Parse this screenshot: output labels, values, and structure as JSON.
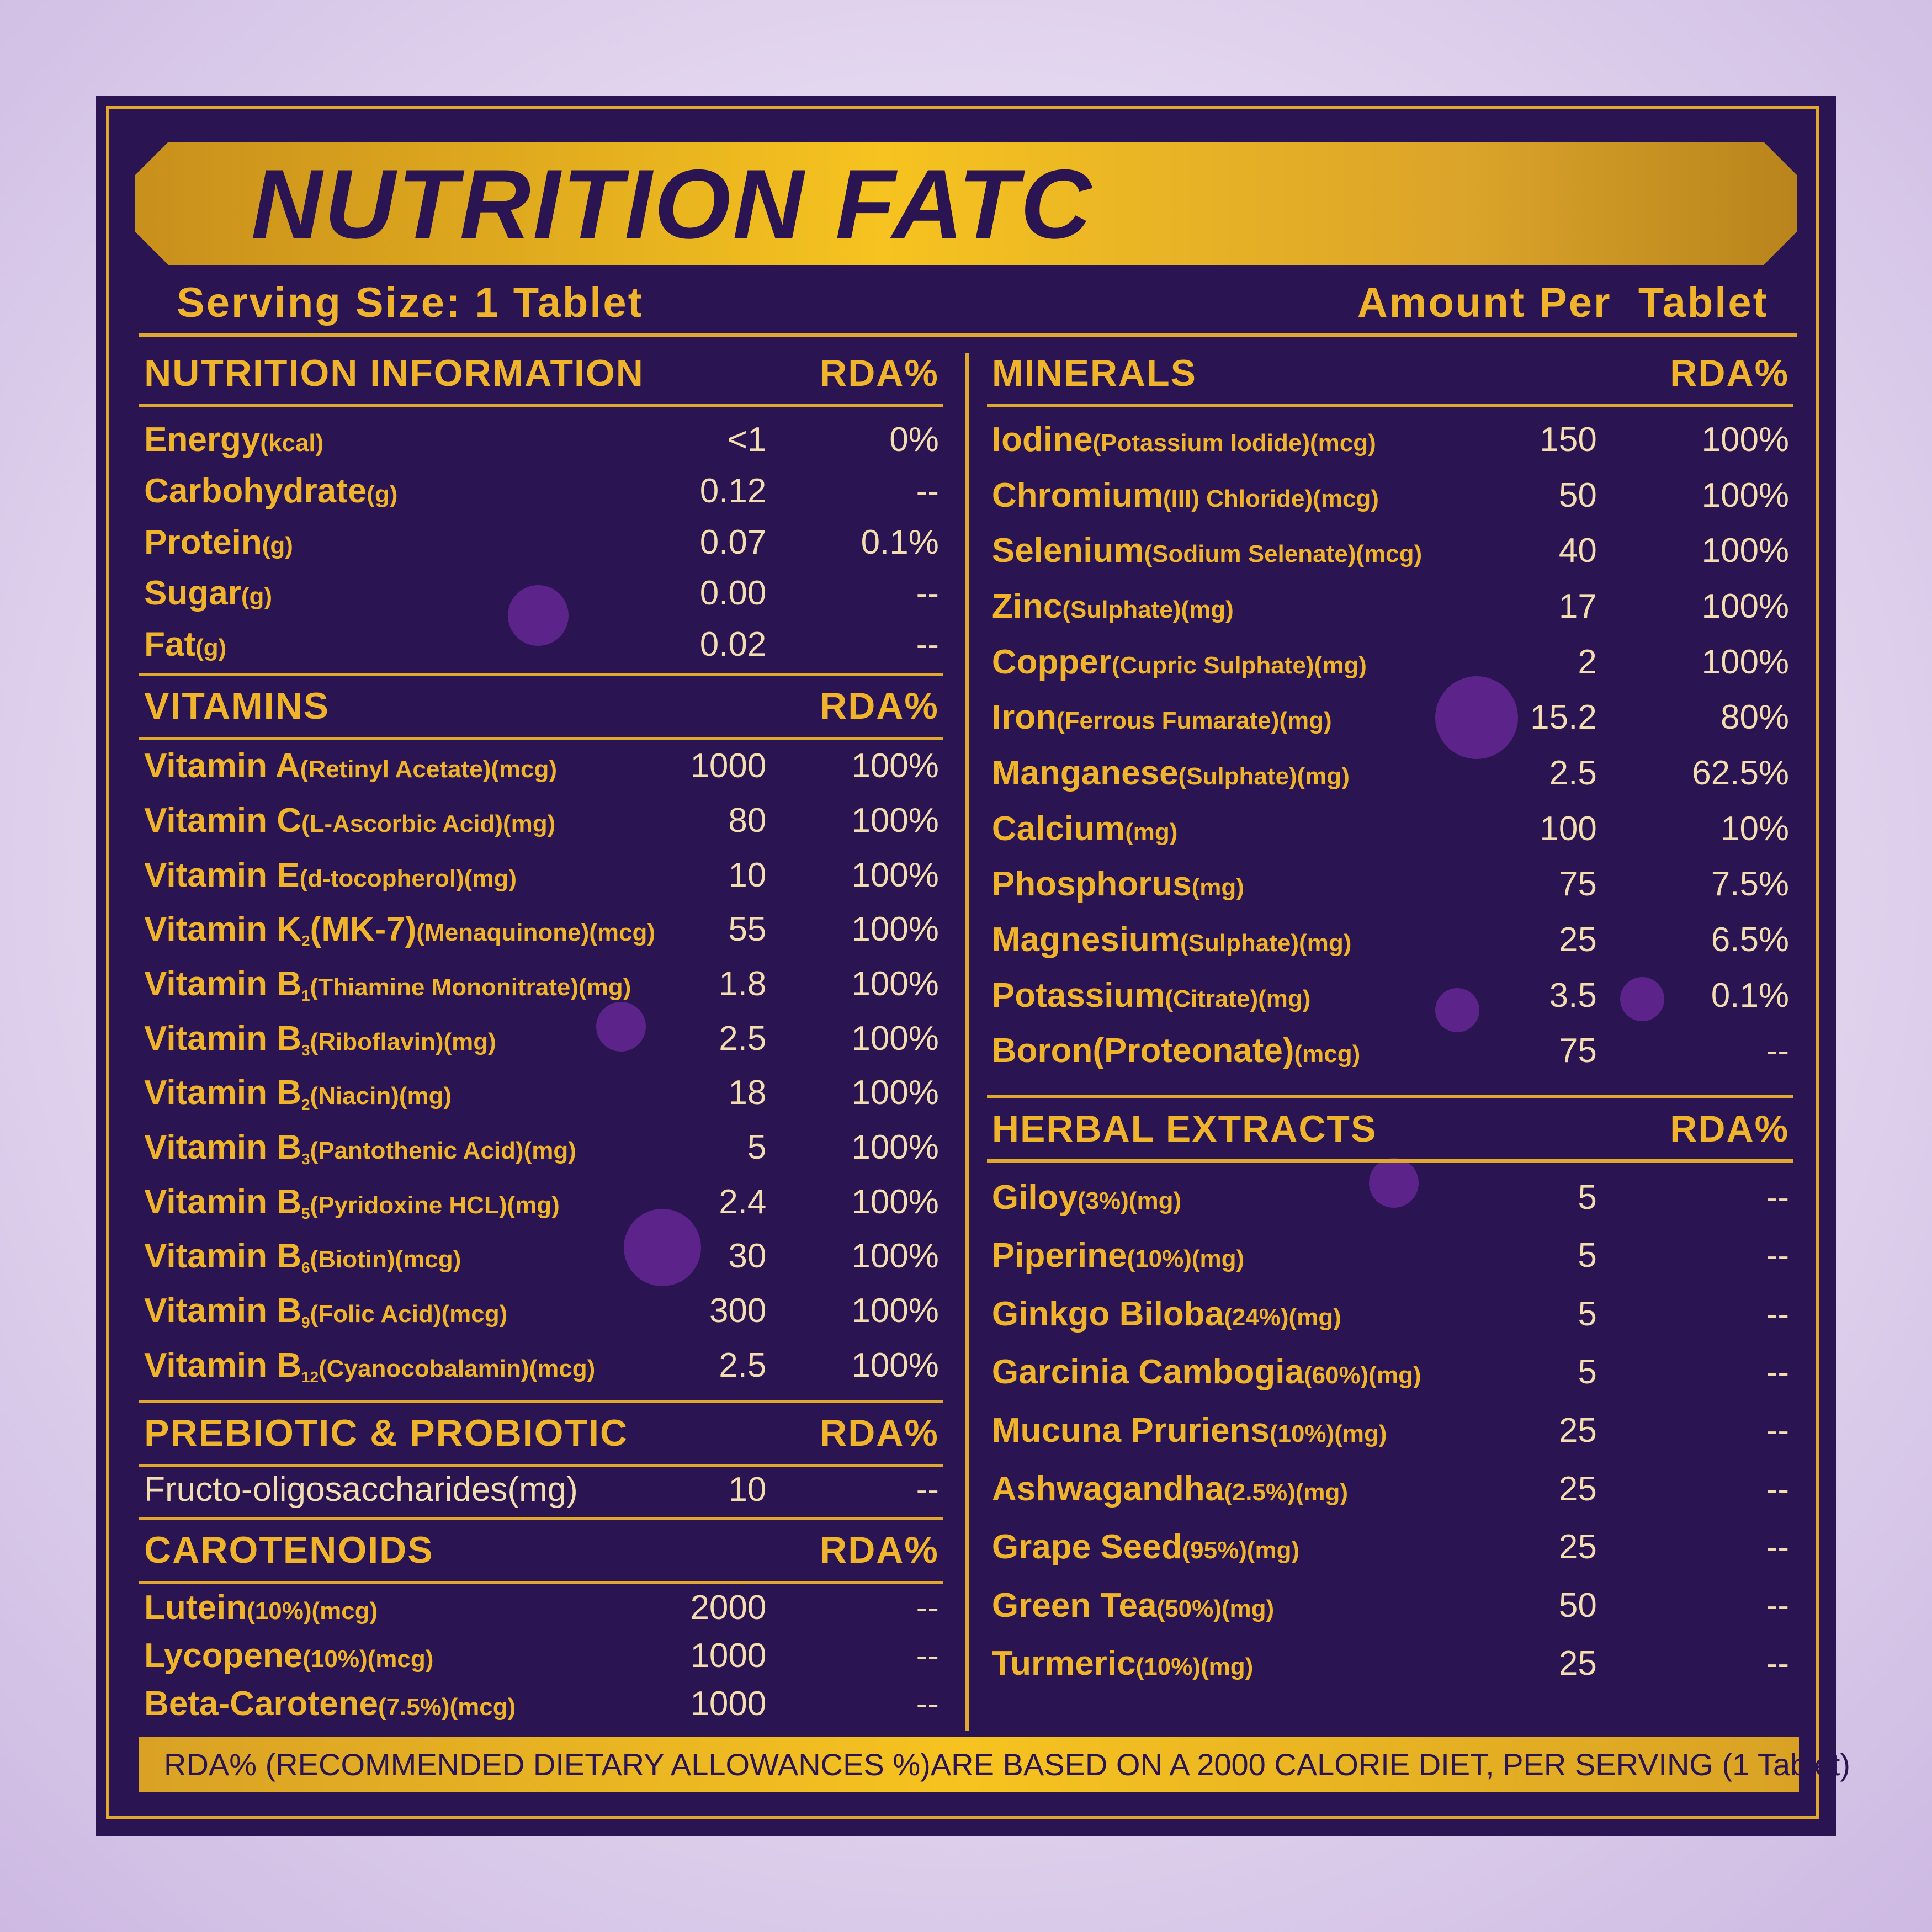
{
  "title": "NUTRITION FATC",
  "serving_size": "Serving Size: 1 Tablet",
  "amount_per": "Amount Per  Tablet",
  "left_sections": [
    {
      "title": "NUTRITION INFORMATION",
      "rda_header": "RDA%",
      "rows": [
        {
          "name": "Energy",
          "detail": "(kcal)",
          "amount": "<1",
          "rda": "0%"
        },
        {
          "name": "Carbohydrate",
          "detail": "(g)",
          "amount": "0.12",
          "rda": "--"
        },
        {
          "name": "Protein",
          "detail": "(g)",
          "amount": "0.07",
          "rda": "0.1%"
        },
        {
          "name": "Sugar",
          "detail": "(g)",
          "amount": "0.00",
          "rda": "--"
        },
        {
          "name": "Fat",
          "detail": "(g)",
          "amount": "0.02",
          "rda": "--"
        }
      ]
    },
    {
      "title": "VITAMINS",
      "rda_header": "RDA%",
      "rows": [
        {
          "name": "Vitamin A",
          "detail": "(Retinyl Acetate)(mcg)",
          "amount": "1000",
          "rda": "100%"
        },
        {
          "name": "Vitamin C",
          "detail": "(L-Ascorbic Acid)(mg)",
          "amount": "80",
          "rda": "100%"
        },
        {
          "name": "Vitamin E",
          "detail": "(d-tocopherol)(mg)",
          "amount": "10",
          "rda": "100%"
        },
        {
          "name": "Vitamin K",
          "sub": "2",
          "name2": "(MK-7)",
          "detail": "(Menaquinone)(mcg)",
          "amount": "55",
          "rda": "100%"
        },
        {
          "name": "Vitamin B",
          "sub": "1",
          "detail": "(Thiamine Mononitrate)(mg)",
          "amount": "1.8",
          "rda": "100%"
        },
        {
          "name": "Vitamin B",
          "sub": "3",
          "detail": "(Riboflavin)(mg)",
          "amount": "2.5",
          "rda": "100%"
        },
        {
          "name": "Vitamin B",
          "sub": "2",
          "detail": "(Niacin)(mg)",
          "amount": "18",
          "rda": "100%"
        },
        {
          "name": "Vitamin B",
          "sub": "3",
          "detail": "(Pantothenic Acid)(mg)",
          "amount": "5",
          "rda": "100%"
        },
        {
          "name": "Vitamin B",
          "sub": "5",
          "detail": "(Pyridoxine HCL)(mg)",
          "amount": "2.4",
          "rda": "100%"
        },
        {
          "name": "Vitamin B",
          "sub": "6",
          "detail": "(Biotin)(mcg)",
          "amount": "30",
          "rda": "100%"
        },
        {
          "name": "Vitamin B",
          "sub": "9",
          "detail": "(Folic Acid)(mcg)",
          "amount": "300",
          "rda": "100%"
        },
        {
          "name": "Vitamin B",
          "sub": "12",
          "detail": "(Cyanocobalamin)(mcg)",
          "amount": "2.5",
          "rda": "100%"
        }
      ]
    },
    {
      "title": "PREBIOTIC & PROBIOTIC",
      "rda_header": "RDA%",
      "rows": [
        {
          "name": "Fructo-oligosaccharides(mg)",
          "amount": "10",
          "rda": "--"
        }
      ]
    },
    {
      "title": "CAROTENOIDS",
      "rda_header": "RDA%",
      "rows": [
        {
          "name": "Lutein",
          "detail": "(10%)(mcg)",
          "amount": "2000",
          "rda": "--"
        },
        {
          "name": "Lycopene",
          "detail": "(10%)(mcg)",
          "amount": "1000",
          "rda": "--"
        },
        {
          "name": "Beta-Carotene",
          "detail": "(7.5%)(mcg)",
          "amount": "1000",
          "rda": "--"
        }
      ]
    }
  ],
  "right_sections": [
    {
      "title": "MINERALS",
      "rda_header": "RDA%",
      "rows": [
        {
          "name": "Iodine",
          "detail": "(Potassium Iodide)(mcg)",
          "amount": "150",
          "rda": "100%"
        },
        {
          "name": "Chromium",
          "detail": "(III) Chloride)(mcg)",
          "amount": "50",
          "rda": "100%"
        },
        {
          "name": "Selenium",
          "detail": "(Sodium Selenate)(mcg)",
          "amount": "40",
          "rda": "100%"
        },
        {
          "name": "Zinc",
          "detail": "(Sulphate)(mg)",
          "amount": "17",
          "rda": "100%"
        },
        {
          "name": "Copper",
          "detail": "(Cupric Sulphate)(mg)",
          "amount": "2",
          "rda": "100%"
        },
        {
          "name": "Iron",
          "detail": "(Ferrous Fumarate)(mg)",
          "amount": "15.2",
          "rda": "80%"
        },
        {
          "name": "Manganese",
          "detail": "(Sulphate)(mg)",
          "amount": "2.5",
          "rda": "62.5%"
        },
        {
          "name": "Calcium",
          "detail": "(mg)",
          "amount": "100",
          "rda": "10%"
        },
        {
          "name": "Phosphorus",
          "detail": "(mg)",
          "amount": "75",
          "rda": "7.5%"
        },
        {
          "name": "Magnesium",
          "detail": "(Sulphate)(mg)",
          "amount": "25",
          "rda": "6.5%"
        },
        {
          "name": "Potassium",
          "detail": "(Citrate)(mg)",
          "amount": "3.5",
          "rda": "0.1%"
        },
        {
          "name": "Boron(Proteonate)",
          "detail": "(mcg)",
          "amount": "75",
          "rda": "--"
        }
      ]
    },
    {
      "title": "HERBAL EXTRACTS",
      "rda_header": "RDA%",
      "rows": [
        {
          "name": "Giloy",
          "detail": "(3%)(mg)",
          "amount": "5",
          "rda": "--"
        },
        {
          "name": "Piperine",
          "detail": "(10%)(mg)",
          "amount": "5",
          "rda": "--"
        },
        {
          "name": "Ginkgo Biloba",
          "detail": "(24%)(mg)",
          "amount": "5",
          "rda": "--"
        },
        {
          "name": "Garcinia Cambogia",
          "detail": "(60%)(mg)",
          "amount": "5",
          "rda": "--"
        },
        {
          "name": "Mucuna Pruriens",
          "detail": "(10%)(mg)",
          "amount": "25",
          "rda": "--"
        },
        {
          "name": "Ashwagandha",
          "detail": "(2.5%)(mg)",
          "amount": "25",
          "rda": "--"
        },
        {
          "name": "Grape Seed",
          "detail": "(95%)(mg)",
          "amount": "25",
          "rda": "--"
        },
        {
          "name": "Green Tea",
          "detail": "(50%)(mg)",
          "amount": "50",
          "rda": "--"
        },
        {
          "name": "Turmeric",
          "detail": "(10%)(mg)",
          "amount": "25",
          "rda": "--"
        }
      ]
    }
  ],
  "footnote": "RDA% (RECOMMENDED DIETARY ALLOWANCES %)ARE BASED ON A 2000 CALORIE DIET, PER SERVING (1 Tablet)"
}
